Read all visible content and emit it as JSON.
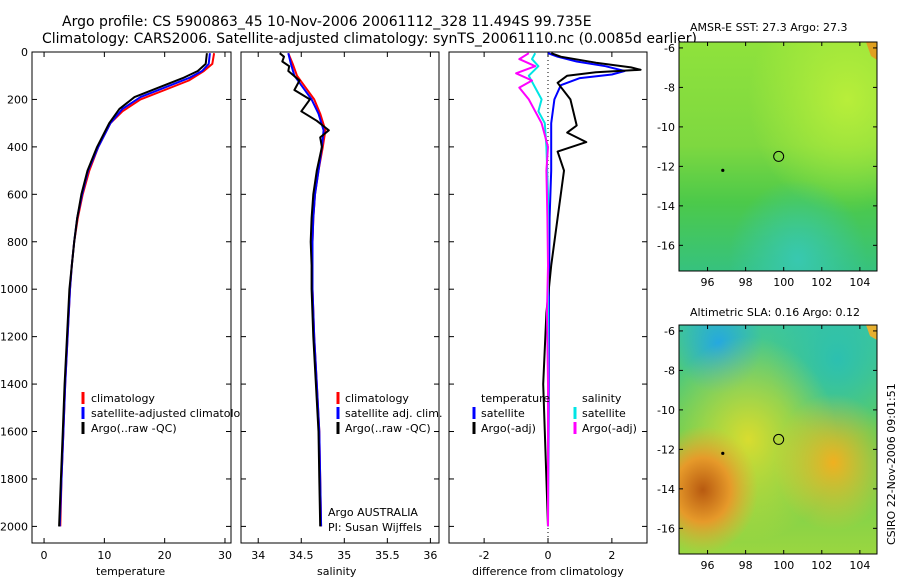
{
  "header": {
    "line1": "Argo profile: CS 5900863_45 10-Nov-2006 20061112_328 11.494S 99.735E",
    "line2": "Climatology: CARS2006. Satellite-adjusted climatology: synTS_20061110.nc (0.0085d earlier)"
  },
  "footer_stamp": "CSIRO 22-Nov-2006 09:01:51",
  "colors": {
    "climatology": "#ff0000",
    "satellite": "#0000ff",
    "argo": "#000000",
    "sal_satellite": "#00e5e5",
    "sal_argo": "#ff00ff"
  },
  "chart_data": [
    {
      "id": "temperature",
      "type": "line",
      "xlabel": "temperature",
      "xlim": [
        -2,
        31
      ],
      "xticks": [
        0,
        10,
        20,
        30
      ],
      "ylim": [
        2070,
        0
      ],
      "yticks": [
        0,
        200,
        400,
        600,
        800,
        1000,
        1200,
        1400,
        1600,
        1800,
        2000
      ],
      "legend": [
        "climatology",
        "satellite-adjusted climatology",
        "Argo(..raw -QC)"
      ],
      "series": [
        {
          "name": "climatology",
          "color": "#ff0000",
          "points": [
            [
              28.2,
              5
            ],
            [
              27.9,
              50
            ],
            [
              26.5,
              80
            ],
            [
              24.0,
              120
            ],
            [
              20.0,
              160
            ],
            [
              16.0,
              200
            ],
            [
              13.0,
              250
            ],
            [
              11.0,
              300
            ],
            [
              9.0,
              400
            ],
            [
              7.5,
              500
            ],
            [
              6.4,
              600
            ],
            [
              5.6,
              700
            ],
            [
              5.0,
              800
            ],
            [
              4.6,
              900
            ],
            [
              4.3,
              1000
            ],
            [
              3.9,
              1200
            ],
            [
              3.5,
              1400
            ],
            [
              3.2,
              1600
            ],
            [
              2.9,
              1800
            ],
            [
              2.7,
              2000
            ]
          ]
        },
        {
          "name": "satellite",
          "color": "#0000ff",
          "points": [
            [
              27.5,
              5
            ],
            [
              27.3,
              50
            ],
            [
              26.2,
              80
            ],
            [
              24.0,
              110
            ],
            [
              20.0,
              150
            ],
            [
              16.0,
              190
            ],
            [
              13.0,
              240
            ],
            [
              11.0,
              300
            ],
            [
              9.0,
              400
            ],
            [
              7.3,
              500
            ],
            [
              6.3,
              600
            ],
            [
              5.5,
              700
            ],
            [
              5.0,
              800
            ],
            [
              4.6,
              900
            ],
            [
              4.3,
              1000
            ],
            [
              3.9,
              1200
            ],
            [
              3.5,
              1400
            ],
            [
              3.2,
              1600
            ],
            [
              2.9,
              1800
            ],
            [
              2.6,
              2000
            ]
          ]
        },
        {
          "name": "Argo",
          "color": "#000000",
          "points": [
            [
              27.0,
              5
            ],
            [
              26.8,
              50
            ],
            [
              25.5,
              80
            ],
            [
              23.0,
              110
            ],
            [
              19.0,
              150
            ],
            [
              15.0,
              190
            ],
            [
              12.5,
              240
            ],
            [
              10.8,
              300
            ],
            [
              8.8,
              400
            ],
            [
              7.2,
              500
            ],
            [
              6.2,
              600
            ],
            [
              5.5,
              700
            ],
            [
              5.0,
              800
            ],
            [
              4.6,
              900
            ],
            [
              4.2,
              1000
            ],
            [
              3.8,
              1200
            ],
            [
              3.4,
              1400
            ],
            [
              3.1,
              1600
            ],
            [
              2.8,
              1800
            ],
            [
              2.5,
              2000
            ]
          ]
        }
      ]
    },
    {
      "id": "salinity",
      "type": "line",
      "xlabel": "salinity",
      "xlim": [
        33.8,
        36.1
      ],
      "xticks": [
        34,
        34.5,
        35,
        35.5,
        36
      ],
      "xticklabels": [
        "34",
        "34.5",
        "35",
        "35.5",
        "36"
      ],
      "ylim": [
        2070,
        0
      ],
      "legend": [
        "climatology",
        "satellite adj. clim.",
        "Argo(..raw -QC)"
      ],
      "annotation": [
        "Argo AUSTRALIA",
        "PI: Susan Wijffels"
      ],
      "series": [
        {
          "name": "climatology",
          "color": "#ff0000",
          "points": [
            [
              34.35,
              5
            ],
            [
              34.4,
              50
            ],
            [
              34.45,
              100
            ],
            [
              34.55,
              150
            ],
            [
              34.65,
              200
            ],
            [
              34.72,
              260
            ],
            [
              34.78,
              330
            ],
            [
              34.75,
              400
            ],
            [
              34.7,
              500
            ],
            [
              34.66,
              600
            ],
            [
              34.64,
              700
            ],
            [
              34.63,
              800
            ],
            [
              34.63,
              900
            ],
            [
              34.63,
              1000
            ],
            [
              34.65,
              1200
            ],
            [
              34.68,
              1400
            ],
            [
              34.71,
              1600
            ],
            [
              34.72,
              1800
            ],
            [
              34.73,
              2000
            ]
          ]
        },
        {
          "name": "satellite",
          "color": "#0000ff",
          "points": [
            [
              34.35,
              5
            ],
            [
              34.38,
              50
            ],
            [
              34.42,
              100
            ],
            [
              34.52,
              150
            ],
            [
              34.62,
              200
            ],
            [
              34.7,
              260
            ],
            [
              34.76,
              330
            ],
            [
              34.74,
              400
            ],
            [
              34.7,
              500
            ],
            [
              34.66,
              600
            ],
            [
              34.64,
              700
            ],
            [
              34.63,
              800
            ],
            [
              34.63,
              900
            ],
            [
              34.63,
              1000
            ],
            [
              34.65,
              1200
            ],
            [
              34.68,
              1400
            ],
            [
              34.71,
              1600
            ],
            [
              34.72,
              1800
            ],
            [
              34.73,
              2000
            ]
          ]
        },
        {
          "name": "Argo",
          "color": "#000000",
          "points": [
            [
              34.25,
              5
            ],
            [
              34.3,
              20
            ],
            [
              34.28,
              40
            ],
            [
              34.36,
              60
            ],
            [
              34.35,
              80
            ],
            [
              34.48,
              120
            ],
            [
              34.42,
              160
            ],
            [
              34.6,
              200
            ],
            [
              34.5,
              250
            ],
            [
              34.68,
              290
            ],
            [
              34.82,
              330
            ],
            [
              34.72,
              360
            ],
            [
              34.74,
              400
            ],
            [
              34.68,
              500
            ],
            [
              34.64,
              600
            ],
            [
              34.62,
              700
            ],
            [
              34.61,
              800
            ],
            [
              34.62,
              900
            ],
            [
              34.62,
              1000
            ],
            [
              34.64,
              1200
            ],
            [
              34.67,
              1400
            ],
            [
              34.7,
              1600
            ],
            [
              34.71,
              1800
            ],
            [
              34.72,
              2000
            ]
          ]
        }
      ]
    },
    {
      "id": "difference",
      "type": "line",
      "xlabel": "difference from climatology",
      "xlim": [
        -3.1,
        3.1
      ],
      "xticks": [
        -2,
        0,
        2
      ],
      "ylim": [
        2070,
        0
      ],
      "legend_titles": [
        "temperature",
        "salinity"
      ],
      "legend": [
        "satellite",
        "Argo(-adj)",
        "satellite",
        "Argo(-adj)"
      ],
      "series": [
        {
          "name": "temperature satellite",
          "color": "#0000ff",
          "points": [
            [
              0.0,
              5
            ],
            [
              0.3,
              20
            ],
            [
              0.9,
              40
            ],
            [
              1.8,
              60
            ],
            [
              2.4,
              80
            ],
            [
              2.0,
              95
            ],
            [
              1.0,
              110
            ],
            [
              0.4,
              140
            ],
            [
              0.2,
              200
            ],
            [
              0.1,
              300
            ],
            [
              0.1,
              500
            ],
            [
              0.05,
              700
            ],
            [
              0.03,
              1000
            ],
            [
              0.02,
              1500
            ],
            [
              0.0,
              2000
            ]
          ]
        },
        {
          "name": "temperature Argo(-adj)",
          "color": "#000000",
          "points": [
            [
              0.1,
              5
            ],
            [
              0.4,
              20
            ],
            [
              1.5,
              45
            ],
            [
              2.6,
              65
            ],
            [
              2.9,
              75
            ],
            [
              1.5,
              85
            ],
            [
              0.6,
              100
            ],
            [
              0.3,
              130
            ],
            [
              0.7,
              200
            ],
            [
              0.9,
              310
            ],
            [
              0.6,
              340
            ],
            [
              1.2,
              380
            ],
            [
              0.3,
              420
            ],
            [
              0.5,
              500
            ],
            [
              0.3,
              700
            ],
            [
              0.1,
              900
            ],
            [
              -0.05,
              1100
            ],
            [
              -0.15,
              1400
            ],
            [
              -0.1,
              1600
            ],
            [
              -0.05,
              1800
            ],
            [
              0.0,
              2000
            ]
          ]
        },
        {
          "name": "salinity satellite",
          "color": "#00e5e5",
          "points": [
            [
              -0.4,
              5
            ],
            [
              -0.5,
              30
            ],
            [
              -0.3,
              60
            ],
            [
              -0.6,
              100
            ],
            [
              -0.4,
              150
            ],
            [
              -0.2,
              200
            ],
            [
              -0.3,
              250
            ],
            [
              -0.1,
              300
            ],
            [
              -0.05,
              400
            ],
            [
              0.0,
              600
            ],
            [
              0.0,
              1000
            ],
            [
              0.0,
              2000
            ]
          ]
        },
        {
          "name": "salinity Argo(-adj)",
          "color": "#ff00ff",
          "points": [
            [
              -0.6,
              5
            ],
            [
              -0.9,
              30
            ],
            [
              -0.4,
              60
            ],
            [
              -1.0,
              90
            ],
            [
              -0.5,
              120
            ],
            [
              -0.9,
              150
            ],
            [
              -0.6,
              200
            ],
            [
              -0.4,
              250
            ],
            [
              -0.2,
              300
            ],
            [
              0.0,
              400
            ],
            [
              -0.05,
              500
            ],
            [
              -0.02,
              700
            ],
            [
              0.0,
              900
            ],
            [
              -0.03,
              1100
            ],
            [
              0.0,
              1400
            ],
            [
              0.0,
              2000
            ]
          ]
        }
      ]
    },
    {
      "id": "sst_map",
      "type": "heatmap",
      "title": "AMSR-E SST: 27.3 Argo: 27.3",
      "xlim": [
        94.5,
        104.9
      ],
      "xticks": [
        96,
        98,
        100,
        102,
        104
      ],
      "ylim": [
        -17.3,
        -5.7
      ],
      "yticks": [
        -6,
        -8,
        -10,
        -12,
        -14,
        -16
      ],
      "argo_position": [
        99.735,
        -11.494
      ],
      "trail": [
        96.8,
        -12.2
      ]
    },
    {
      "id": "sla_map",
      "type": "heatmap",
      "title": "Altimetric SLA: 0.16 Argo: 0.12",
      "xlim": [
        94.5,
        104.9
      ],
      "xticks": [
        96,
        98,
        100,
        102,
        104
      ],
      "ylim": [
        -17.3,
        -5.7
      ],
      "yticks": [
        -6,
        -8,
        -10,
        -12,
        -14,
        -16
      ],
      "argo_position": [
        99.735,
        -11.494
      ],
      "trail": [
        96.8,
        -12.2
      ]
    }
  ]
}
